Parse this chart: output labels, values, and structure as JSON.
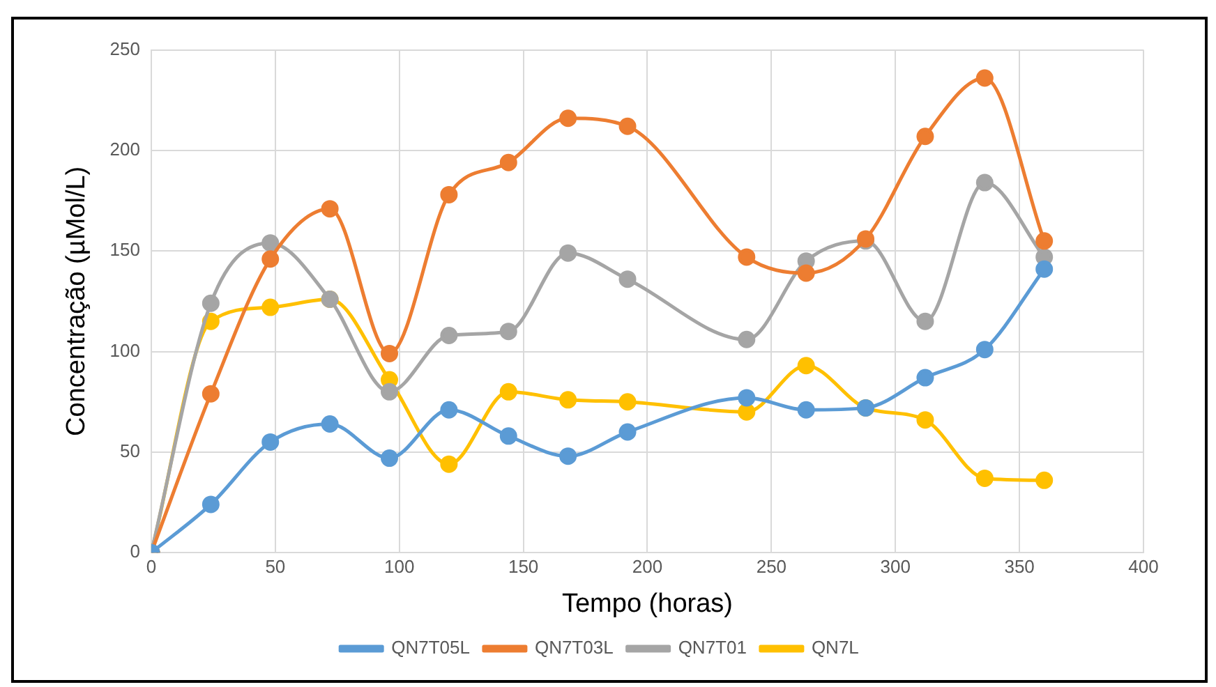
{
  "chart_data": {
    "type": "line",
    "xlabel": "Tempo (horas)",
    "ylabel": "Concentração (µMol/L)",
    "x": [
      0,
      24,
      48,
      72,
      96,
      120,
      144,
      168,
      192,
      240,
      264,
      288,
      312,
      336,
      360
    ],
    "series": [
      {
        "name": "QN7T05L",
        "color": "#5b9bd5",
        "values": [
          0,
          24,
          55,
          64,
          47,
          71,
          58,
          48,
          60,
          77,
          71,
          72,
          87,
          101,
          141
        ]
      },
      {
        "name": "QN7T03L",
        "color": "#ed7d31",
        "values": [
          0,
          79,
          146,
          171,
          99,
          178,
          194,
          216,
          212,
          147,
          139,
          156,
          207,
          236,
          155
        ]
      },
      {
        "name": "QN7T01",
        "color": "#a5a5a5",
        "values": [
          0,
          124,
          154,
          126,
          80,
          108,
          110,
          149,
          136,
          106,
          145,
          155,
          115,
          184,
          147
        ]
      },
      {
        "name": "QN7L",
        "color": "#ffc000",
        "values": [
          0,
          115,
          122,
          126,
          86,
          44,
          80,
          76,
          75,
          70,
          93,
          72,
          66,
          37,
          36
        ]
      }
    ],
    "xlim": [
      0,
      400
    ],
    "xticks": [
      0,
      50,
      100,
      150,
      200,
      250,
      300,
      350,
      400
    ],
    "ylim": [
      0,
      250
    ],
    "yticks": [
      0,
      50,
      100,
      150,
      200,
      250
    ],
    "grid": true,
    "legend": "bottom",
    "marker": "circle",
    "line_style": "solid"
  }
}
